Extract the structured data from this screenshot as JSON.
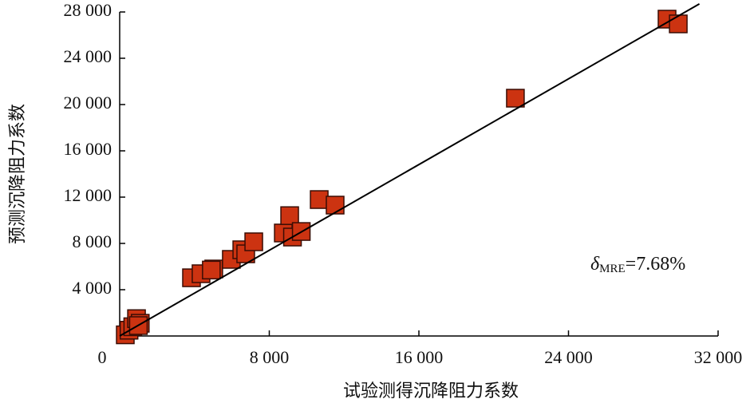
{
  "chart_data": {
    "type": "scatter",
    "x_label": "试验测得沉降阻力系数",
    "y_label": "预测沉降阻力系数",
    "annotation": {
      "symbol": "δ",
      "subscript": "MRE",
      "text": "=7.68%"
    },
    "xlim": [
      0,
      32000
    ],
    "ylim": [
      0,
      28000
    ],
    "xticks": [
      0,
      {
        "value": 8000,
        "label": "8 000"
      },
      {
        "value": 16000,
        "label": "16 000"
      },
      {
        "value": 24000,
        "label": "24 000"
      },
      {
        "value": 32000,
        "label": "32 000"
      }
    ],
    "yticks": [
      {
        "value": 4000,
        "label": "4 000"
      },
      {
        "value": 8000,
        "label": "8 000"
      },
      {
        "value": 12000,
        "label": "12 000"
      },
      {
        "value": 16000,
        "label": "16 000"
      },
      {
        "value": 20000,
        "label": "20 000"
      },
      {
        "value": 24000,
        "label": "24 000"
      },
      {
        "value": 28000,
        "label": "28 000"
      }
    ],
    "color": "#cc3311",
    "x": [
      300,
      500,
      700,
      900,
      1100,
      1000,
      3840,
      4350,
      5030,
      4900,
      5970,
      6530,
      6740,
      7170,
      8750,
      9090,
      9240,
      9710,
      10670,
      11520,
      21160,
      29270,
      29870
    ],
    "y": [
      100,
      500,
      800,
      1500,
      1100,
      900,
      5030,
      5380,
      5790,
      5700,
      6620,
      7450,
      7100,
      8140,
      8900,
      10400,
      8550,
      9030,
      11790,
      11310,
      20550,
      27380,
      26970
    ],
    "fit_line": {
      "x": [
        0,
        31000
      ],
      "y": [
        0,
        28700
      ]
    }
  }
}
